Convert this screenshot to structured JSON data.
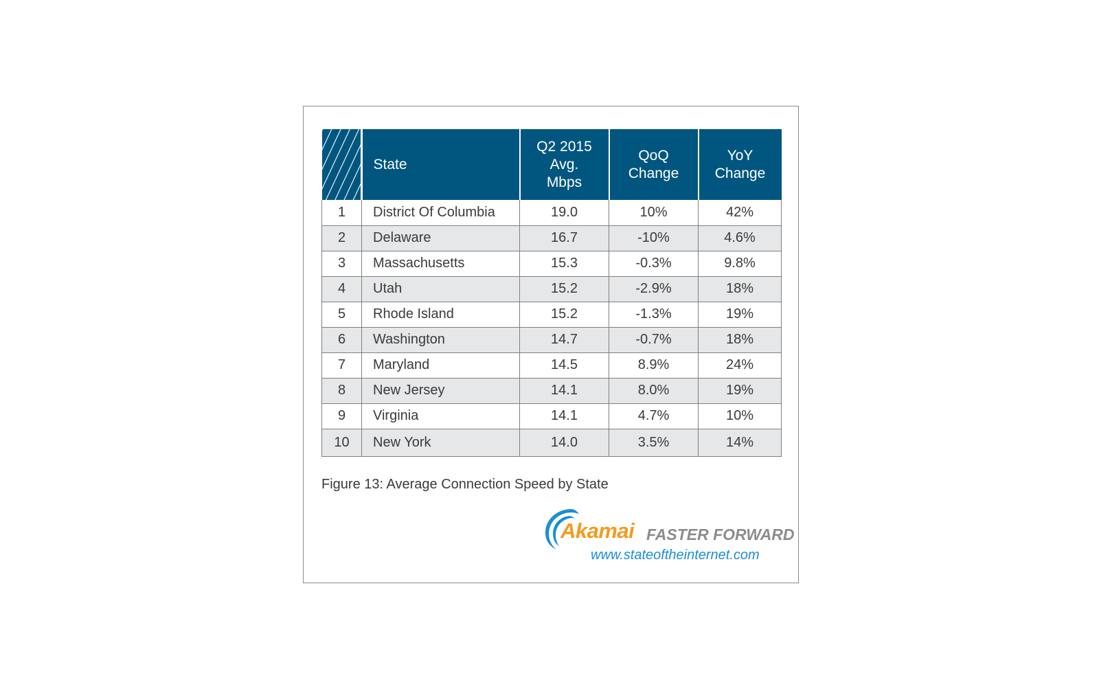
{
  "colors": {
    "header_bg": "#00567f",
    "alt_row_bg": "#e6e7e9",
    "brand_orange": "#f39a1e",
    "brand_blue": "#1a8ed6",
    "tagline_gray": "#8a8c8e"
  },
  "chart_data": {
    "type": "table",
    "columns": [
      "",
      "State",
      "Q2 2015 Avg. Mbps",
      "QoQ Change",
      "YoY Change"
    ],
    "header_lines": {
      "state": [
        "State"
      ],
      "avg": [
        "Q2 2015",
        "Avg.",
        "Mbps"
      ],
      "qoq": [
        "QoQ",
        "Change"
      ],
      "yoy": [
        "YoY",
        "Change"
      ]
    },
    "rows": [
      {
        "rank": "1",
        "state": "District Of Columbia",
        "avg": "19.0",
        "qoq": "10%",
        "yoy": "42%"
      },
      {
        "rank": "2",
        "state": "Delaware",
        "avg": "16.7",
        "qoq": "-10%",
        "yoy": "4.6%"
      },
      {
        "rank": "3",
        "state": "Massachusetts",
        "avg": "15.3",
        "qoq": "-0.3%",
        "yoy": "9.8%"
      },
      {
        "rank": "4",
        "state": "Utah",
        "avg": "15.2",
        "qoq": "-2.9%",
        "yoy": "18%"
      },
      {
        "rank": "5",
        "state": "Rhode Island",
        "avg": "15.2",
        "qoq": "-1.3%",
        "yoy": "19%"
      },
      {
        "rank": "6",
        "state": "Washington",
        "avg": "14.7",
        "qoq": "-0.7%",
        "yoy": "18%"
      },
      {
        "rank": "7",
        "state": "Maryland",
        "avg": "14.5",
        "qoq": "8.9%",
        "yoy": "24%"
      },
      {
        "rank": "8",
        "state": "New Jersey",
        "avg": "14.1",
        "qoq": "8.0%",
        "yoy": "19%"
      },
      {
        "rank": "9",
        "state": "Virginia",
        "avg": "14.1",
        "qoq": "4.7%",
        "yoy": "10%"
      },
      {
        "rank": "10",
        "state": "New York",
        "avg": "14.0",
        "qoq": "3.5%",
        "yoy": "14%"
      }
    ],
    "caption": "Figure 13: Average Connection Speed by State"
  },
  "logo": {
    "brand": "Akamai",
    "tagline": "FASTER FORWARD",
    "url": "www.stateoftheinternet.com"
  }
}
